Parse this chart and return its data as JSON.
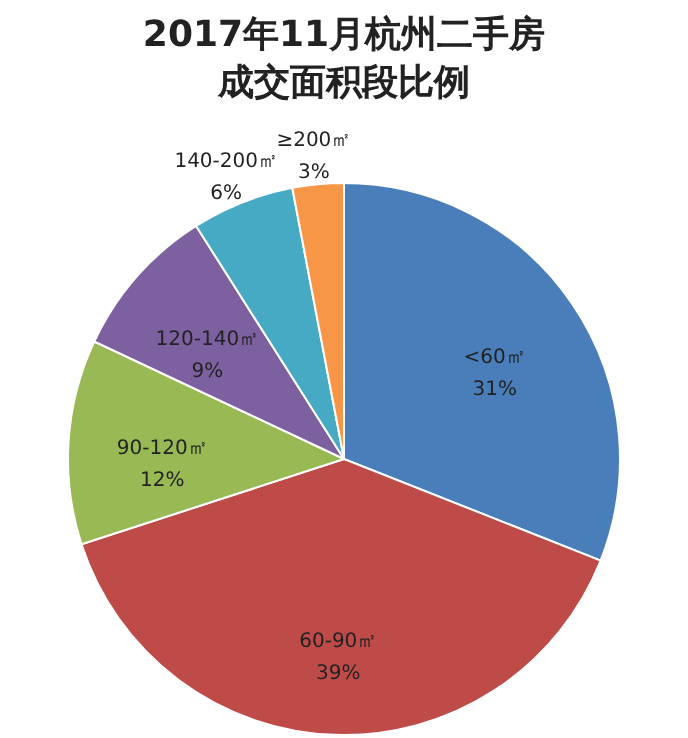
{
  "chart_data": {
    "type": "pie",
    "title": "2017年11月杭州二手房成交面积段比例",
    "categories": [
      "<60㎡",
      "60-90㎡",
      "90-120㎡",
      "120-140㎡",
      "140-200㎡",
      "≥200㎡"
    ],
    "values": [
      31,
      39,
      12,
      9,
      6,
      3
    ],
    "value_labels": [
      "31%",
      "39%",
      "12%",
      "9%",
      "6%",
      "3%"
    ],
    "colors": [
      "#4a7ebb",
      "#be4b48",
      "#98b954",
      "#7d60a0",
      "#46aac5",
      "#f79646"
    ],
    "legend": false
  }
}
